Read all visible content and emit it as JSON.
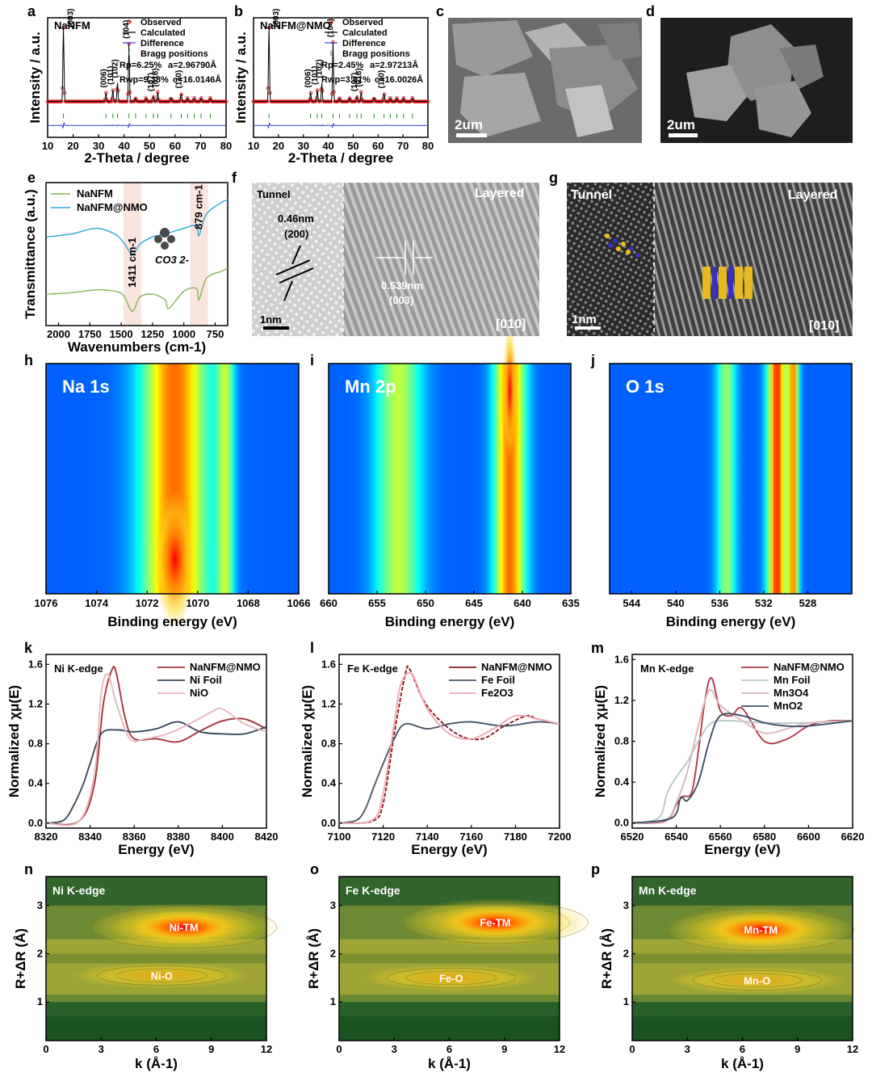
{
  "panel_labels": [
    "a",
    "b",
    "c",
    "d",
    "e",
    "f",
    "g",
    "h",
    "i",
    "j",
    "k",
    "l",
    "m",
    "n",
    "o",
    "p"
  ],
  "chart_data": [
    {
      "id": "a",
      "type": "line",
      "title": "NaNFM",
      "xlabel": "2-Theta / degree",
      "ylabel": "Intensity / a.u.",
      "xlim": [
        10,
        80
      ],
      "xticks": [
        10,
        20,
        30,
        40,
        50,
        60,
        70,
        80
      ],
      "legend": [
        "Observed",
        "Calculated",
        "Difference",
        "Bragg positions"
      ],
      "stats": [
        "Rp=6.25%",
        "a=2.96790Å",
        "Rwp=9.38%",
        "c=16.0146Å"
      ],
      "peaks": [
        {
          "label": "(003)",
          "x": 16.2,
          "y": 1.0
        },
        {
          "label": "(006)",
          "x": 32.9,
          "y": 0.12
        },
        {
          "label": "(101)",
          "x": 35.6,
          "y": 0.16
        },
        {
          "label": "(102)",
          "x": 37.4,
          "y": 0.25
        },
        {
          "label": "(104)",
          "x": 41.9,
          "y": 0.78
        },
        {
          "label": "(107)",
          "x": 51.5,
          "y": 0.07
        },
        {
          "label": "(018)",
          "x": 53.2,
          "y": 0.13
        },
        {
          "label": "(110)",
          "x": 62.4,
          "y": 0.11
        }
      ]
    },
    {
      "id": "b",
      "type": "line",
      "title": "NaNFM@NMO",
      "xlabel": "2-Theta / degree",
      "ylabel": "Intensity / a.u.",
      "xlim": [
        10,
        80
      ],
      "xticks": [
        10,
        20,
        30,
        40,
        50,
        60,
        70,
        80
      ],
      "legend": [
        "Observed",
        "Calculated",
        "Difference",
        "Bragg positions"
      ],
      "stats": [
        "Rp=2.45%",
        "a=2.97213Å",
        "Rwp=3.91%",
        "c=16.0026Å"
      ],
      "peaks": [
        {
          "label": "(003)",
          "x": 16.2,
          "y": 1.0
        },
        {
          "label": "(006)",
          "x": 32.9,
          "y": 0.12
        },
        {
          "label": "(101)",
          "x": 35.6,
          "y": 0.16
        },
        {
          "label": "(102)",
          "x": 37.4,
          "y": 0.25
        },
        {
          "label": "(104)",
          "x": 41.9,
          "y": 0.8
        },
        {
          "label": "(107)",
          "x": 51.5,
          "y": 0.07
        },
        {
          "label": "(018)",
          "x": 53.2,
          "y": 0.13
        },
        {
          "label": "(110)",
          "x": 62.4,
          "y": 0.11
        }
      ]
    },
    {
      "id": "e",
      "type": "line",
      "xlabel": "Wavenumbers (cm-1)",
      "ylabel": "Transmittance (a.u.)",
      "xlim": [
        2100,
        650
      ],
      "xticks": [
        2000,
        1750,
        1500,
        1250,
        1000,
        750
      ],
      "annotations": [
        "1411 cm-1",
        "879 cm-1",
        "CO3 2-"
      ],
      "series": [
        {
          "name": "NaNFM",
          "color": "#86b35a",
          "x": [
            2100,
            1900,
            1700,
            1550,
            1480,
            1411,
            1350,
            1250,
            1150,
            1120,
            1000,
            900,
            879,
            820,
            700,
            650
          ],
          "y": [
            0.22,
            0.23,
            0.25,
            0.24,
            0.21,
            0.1,
            0.2,
            0.22,
            0.18,
            0.12,
            0.24,
            0.26,
            0.18,
            0.33,
            0.38,
            0.4
          ]
        },
        {
          "name": "NaNFM@NMO",
          "color": "#2fa7d8",
          "x": [
            2100,
            1900,
            1700,
            1550,
            1480,
            1411,
            1350,
            1250,
            1150,
            1000,
            900,
            879,
            820,
            700,
            650
          ],
          "y": [
            0.62,
            0.64,
            0.68,
            0.64,
            0.58,
            0.5,
            0.57,
            0.62,
            0.64,
            0.68,
            0.7,
            0.63,
            0.78,
            0.86,
            0.88
          ]
        }
      ]
    },
    {
      "id": "h",
      "type": "heatmap",
      "title": "Na 1s",
      "xlabel": "Binding energy (eV)",
      "xlim": [
        1076,
        1066
      ],
      "xticks": [
        1076,
        1074,
        1072,
        1070,
        1068,
        1066
      ],
      "bands": [
        {
          "center": 1070.9,
          "width": 1.3,
          "intensity": 1.0
        },
        {
          "center": 1068.9,
          "width": 0.35,
          "intensity": 0.55
        }
      ]
    },
    {
      "id": "i",
      "type": "heatmap",
      "title": "Mn 2p",
      "xlabel": "Binding energy (eV)",
      "xlim": [
        660,
        635
      ],
      "xticks": [
        660,
        655,
        650,
        645,
        640,
        635
      ],
      "bands": [
        {
          "center": 641.3,
          "width": 1.6,
          "intensity": 1.0
        },
        {
          "center": 652.8,
          "width": 2.4,
          "intensity": 0.62
        }
      ]
    },
    {
      "id": "j",
      "type": "heatmap",
      "title": "O 1s",
      "xlabel": "Binding energy (eV)",
      "xlim": [
        546,
        524
      ],
      "xticks": [
        544,
        540,
        536,
        532,
        528
      ],
      "bands": [
        {
          "center": 530.8,
          "width": 0.9,
          "intensity": 1.0
        },
        {
          "center": 529.3,
          "width": 0.5,
          "intensity": 0.9
        },
        {
          "center": 535.4,
          "width": 0.9,
          "intensity": 0.55
        }
      ]
    },
    {
      "id": "k",
      "type": "line",
      "title": "Ni K-edge",
      "xlabel": "Energy (eV)",
      "ylabel": "Normalized χμ(E)",
      "xlim": [
        8320,
        8420
      ],
      "ylim": [
        -0.05,
        1.7
      ],
      "xticks": [
        8320,
        8340,
        8360,
        8380,
        8400,
        8420
      ],
      "yticks": [
        0.0,
        0.4,
        0.8,
        1.2,
        1.6
      ],
      "series": [
        {
          "name": "NaNFM@NMO",
          "color": "#a8323c",
          "x": [
            8320,
            8335,
            8342,
            8346,
            8350,
            8352,
            8356,
            8360,
            8370,
            8380,
            8390,
            8400,
            8410,
            8420
          ],
          "y": [
            0.0,
            0.02,
            0.4,
            1.2,
            1.55,
            1.5,
            1.05,
            0.85,
            0.85,
            0.82,
            0.93,
            1.03,
            1.05,
            0.95
          ]
        },
        {
          "name": "Ni Foil",
          "color": "#3a4a5a",
          "x": [
            8320,
            8328,
            8333,
            8337,
            8340,
            8345,
            8352,
            8360,
            8370,
            8380,
            8390,
            8400,
            8410,
            8420
          ],
          "y": [
            0.0,
            0.03,
            0.2,
            0.4,
            0.6,
            0.9,
            0.94,
            0.92,
            0.95,
            1.02,
            0.92,
            0.9,
            0.9,
            0.97
          ]
        },
        {
          "name": "NiO",
          "color": "#e6b8bd",
          "x": [
            8320,
            8335,
            8342,
            8345,
            8348,
            8352,
            8358,
            8365,
            8375,
            8385,
            8395,
            8400,
            8410,
            8420
          ],
          "y": [
            0.0,
            0.02,
            0.5,
            1.3,
            1.5,
            1.2,
            0.85,
            0.85,
            0.9,
            1.0,
            1.12,
            1.15,
            1.0,
            0.92
          ]
        }
      ]
    },
    {
      "id": "l",
      "type": "line",
      "title": "Fe K-edge",
      "xlabel": "Energy (eV)",
      "ylabel": "Normalized χμ(E)",
      "xlim": [
        7100,
        7200
      ],
      "ylim": [
        -0.05,
        1.7
      ],
      "xticks": [
        7100,
        7120,
        7140,
        7160,
        7180,
        7200
      ],
      "yticks": [
        0.0,
        0.4,
        0.8,
        1.2,
        1.6
      ],
      "series": [
        {
          "name": "NaNFM@NMO",
          "color": "#8a1a1a",
          "x": [
            7100,
            7115,
            7120,
            7125,
            7130,
            7132,
            7138,
            7145,
            7155,
            7165,
            7175,
            7185,
            7190,
            7200
          ],
          "y": [
            0.0,
            0.02,
            0.2,
            0.9,
            1.5,
            1.55,
            1.25,
            1.05,
            0.88,
            0.85,
            0.98,
            1.08,
            1.05,
            1.0
          ]
        },
        {
          "name": "Fe Foil",
          "color": "#4a5868",
          "x": [
            7100,
            7108,
            7112,
            7116,
            7120,
            7125,
            7130,
            7140,
            7150,
            7160,
            7175,
            7190,
            7200
          ],
          "y": [
            0.0,
            0.03,
            0.15,
            0.38,
            0.6,
            0.85,
            1.0,
            0.95,
            1.0,
            1.02,
            0.98,
            1.02,
            1.0
          ]
        },
        {
          "name": "Fe2O3",
          "color": "#f0a8b4",
          "x": [
            7100,
            7115,
            7120,
            7125,
            7128,
            7133,
            7140,
            7150,
            7160,
            7170,
            7180,
            7190,
            7200
          ],
          "y": [
            0.0,
            0.03,
            0.3,
            1.0,
            1.4,
            1.5,
            1.15,
            0.9,
            0.85,
            0.95,
            1.08,
            1.05,
            1.0
          ]
        }
      ]
    },
    {
      "id": "m",
      "type": "line",
      "title": "Mn K-edge",
      "xlabel": "Energy (eV)",
      "ylabel": "Normalized χμ(E)",
      "xlim": [
        6520,
        6620
      ],
      "ylim": [
        -0.05,
        1.65
      ],
      "xticks": [
        6520,
        6540,
        6560,
        6580,
        6600,
        6620
      ],
      "yticks": [
        0.0,
        0.4,
        0.8,
        1.2,
        1.6
      ],
      "series": [
        {
          "name": "NaNFM@NMO",
          "color": "#b03a48",
          "x": [
            6520,
            6535,
            6540,
            6543,
            6547,
            6550,
            6553,
            6556,
            6560,
            6565,
            6570,
            6580,
            6590,
            6600,
            6610,
            6620
          ],
          "y": [
            0.0,
            0.02,
            0.18,
            0.26,
            0.3,
            0.7,
            1.2,
            1.42,
            1.1,
            1.05,
            1.12,
            0.8,
            0.82,
            0.95,
            1.0,
            1.0
          ]
        },
        {
          "name": "Mn Foil",
          "color": "#b8c8c8",
          "x": [
            6520,
            6532,
            6536,
            6540,
            6545,
            6550,
            6556,
            6565,
            6580,
            6600,
            6620
          ],
          "y": [
            0.0,
            0.05,
            0.3,
            0.45,
            0.6,
            0.8,
            0.98,
            1.0,
            0.98,
            0.98,
            1.0
          ]
        },
        {
          "name": "Mn3O4",
          "color": "#dab8bc",
          "x": [
            6520,
            6535,
            6540,
            6545,
            6550,
            6555,
            6560,
            6570,
            6580,
            6590,
            6600,
            6620
          ],
          "y": [
            0.0,
            0.03,
            0.2,
            0.5,
            0.95,
            1.3,
            1.15,
            1.0,
            0.88,
            0.92,
            0.98,
            1.0
          ]
        },
        {
          "name": "MnO2",
          "color": "#3d5166",
          "x": [
            6520,
            6538,
            6542,
            6545,
            6550,
            6555,
            6560,
            6570,
            6580,
            6590,
            6600,
            6620
          ],
          "y": [
            0.0,
            0.05,
            0.25,
            0.22,
            0.4,
            0.8,
            1.05,
            1.05,
            0.98,
            0.95,
            0.95,
            1.0
          ]
        }
      ]
    },
    {
      "id": "n",
      "type": "heatmap",
      "title": "Ni K-edge",
      "xlabel": "k (Å-1)",
      "ylabel": "R+ΔR (Å)",
      "xlim": [
        0,
        12
      ],
      "ylim": [
        0.2,
        3.6
      ],
      "xticks": [
        0,
        3,
        6,
        9,
        12
      ],
      "yticks": [
        1,
        2,
        3
      ],
      "annotations": [
        {
          "label": "Ni-TM",
          "k": 7.5,
          "r": 2.55
        },
        {
          "label": "Ni-O",
          "k": 6.3,
          "r": 1.55
        }
      ]
    },
    {
      "id": "o",
      "type": "heatmap",
      "title": "Fe K-edge",
      "xlabel": "k (Å-1)",
      "ylabel": "R+ΔR (Å)",
      "xlim": [
        0,
        12
      ],
      "ylim": [
        0.2,
        3.6
      ],
      "xticks": [
        0,
        3,
        6,
        9,
        12
      ],
      "yticks": [
        1,
        2,
        3
      ],
      "annotations": [
        {
          "label": "Fe-TM",
          "k": 8.5,
          "r": 2.65
        },
        {
          "label": "Fe-O",
          "k": 6.1,
          "r": 1.5
        }
      ]
    },
    {
      "id": "p",
      "type": "heatmap",
      "title": "Mn K-edge",
      "xlabel": "k (Å-1)",
      "ylabel": "R+ΔR (Å)",
      "xlim": [
        0,
        12
      ],
      "ylim": [
        0.2,
        3.6
      ],
      "xticks": [
        0,
        3,
        6,
        9,
        12
      ],
      "yticks": [
        1,
        2,
        3
      ],
      "annotations": [
        {
          "label": "Mn-TM",
          "k": 7.0,
          "r": 2.5
        },
        {
          "label": "Mn-O",
          "k": 6.8,
          "r": 1.45
        }
      ]
    }
  ],
  "images": {
    "c": {
      "scale": "2um"
    },
    "d": {
      "scale": "2um"
    },
    "f": {
      "left": "Tunnel",
      "right": "Layered",
      "d1": "0.46nm",
      "d1_hkl": "(200)",
      "d2": "0.539nm",
      "d2_hkl": "(003)",
      "scale": "1nm",
      "zone": "[010]"
    },
    "g": {
      "left": "Tunnel",
      "right": "Layered",
      "scale": "1nm",
      "zone": "[010]"
    }
  }
}
